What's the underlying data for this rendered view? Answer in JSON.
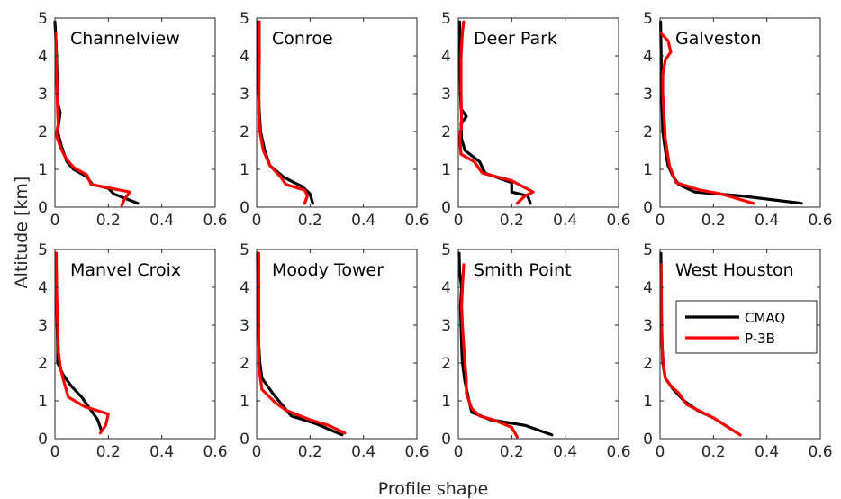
{
  "chart_data": {
    "type": "line",
    "xlabel": "Profile shape",
    "ylabel": "Altitude [km]",
    "xlim": [
      0,
      0.6
    ],
    "ylim": [
      0,
      5
    ],
    "xticks": [
      0,
      0.2,
      0.4,
      0.6
    ],
    "yticks": [
      0,
      1,
      2,
      3,
      4,
      5
    ],
    "xtick_labels": [
      "0",
      "0.2",
      "0.4",
      "0.6"
    ],
    "ytick_labels": [
      "0",
      "1",
      "2",
      "3",
      "4",
      "5"
    ],
    "grid": false,
    "legend": {
      "placement": "right",
      "entries": [
        {
          "name": "CMAQ",
          "color": "#000000"
        },
        {
          "name": "P-3B",
          "color": "#ff0000"
        }
      ]
    },
    "colors": {
      "CMAQ": "#000000",
      "P-3B": "#ff0000"
    },
    "panels": [
      {
        "title": "Channelview",
        "series": [
          {
            "name": "CMAQ",
            "points": [
              [
                0.0,
                4.9
              ],
              [
                0.003,
                4.5
              ],
              [
                0.006,
                4.0
              ],
              [
                0.008,
                3.5
              ],
              [
                0.01,
                3.0
              ],
              [
                0.012,
                2.7
              ],
              [
                0.02,
                2.5
              ],
              [
                0.016,
                2.3
              ],
              [
                0.01,
                2.0
              ],
              [
                0.025,
                1.6
              ],
              [
                0.045,
                1.2
              ],
              [
                0.07,
                1.0
              ],
              [
                0.12,
                0.8
              ],
              [
                0.14,
                0.6
              ],
              [
                0.2,
                0.5
              ],
              [
                0.22,
                0.35
              ],
              [
                0.31,
                0.1
              ]
            ]
          },
          {
            "name": "P-3B",
            "points": [
              [
                0.003,
                4.6
              ],
              [
                0.005,
                4.0
              ],
              [
                0.006,
                3.5
              ],
              [
                0.008,
                3.0
              ],
              [
                0.01,
                2.5
              ],
              [
                0.012,
                2.2
              ],
              [
                0.005,
                1.9
              ],
              [
                0.02,
                1.6
              ],
              [
                0.04,
                1.3
              ],
              [
                0.07,
                1.05
              ],
              [
                0.12,
                0.85
              ],
              [
                0.135,
                0.6
              ],
              [
                0.21,
                0.5
              ],
              [
                0.28,
                0.4
              ],
              [
                0.26,
                0.2
              ],
              [
                0.25,
                0.05
              ]
            ]
          }
        ]
      },
      {
        "title": "Conroe",
        "series": [
          {
            "name": "CMAQ",
            "points": [
              [
                0.005,
                4.9
              ],
              [
                0.006,
                4.0
              ],
              [
                0.006,
                3.3
              ],
              [
                0.01,
                2.5
              ],
              [
                0.015,
                2.0
              ],
              [
                0.03,
                1.5
              ],
              [
                0.05,
                1.1
              ],
              [
                0.1,
                0.8
              ],
              [
                0.14,
                0.65
              ],
              [
                0.17,
                0.55
              ],
              [
                0.2,
                0.35
              ],
              [
                0.21,
                0.1
              ]
            ]
          },
          {
            "name": "P-3B",
            "points": [
              [
                0.01,
                4.9
              ],
              [
                0.01,
                4.0
              ],
              [
                0.009,
                3.2
              ],
              [
                0.008,
                2.5
              ],
              [
                0.012,
                2.0
              ],
              [
                0.025,
                1.5
              ],
              [
                0.05,
                1.1
              ],
              [
                0.09,
                0.8
              ],
              [
                0.11,
                0.6
              ],
              [
                0.18,
                0.45
              ],
              [
                0.19,
                0.3
              ],
              [
                0.18,
                0.1
              ]
            ]
          }
        ]
      },
      {
        "title": "Deer Park",
        "series": [
          {
            "name": "CMAQ",
            "points": [
              [
                0.005,
                4.9
              ],
              [
                0.006,
                4.0
              ],
              [
                0.008,
                3.0
              ],
              [
                0.01,
                2.6
              ],
              [
                0.03,
                2.4
              ],
              [
                0.01,
                2.2
              ],
              [
                0.012,
                1.8
              ],
              [
                0.025,
                1.5
              ],
              [
                0.08,
                1.2
              ],
              [
                0.1,
                0.9
              ],
              [
                0.2,
                0.65
              ],
              [
                0.2,
                0.4
              ],
              [
                0.26,
                0.3
              ],
              [
                0.27,
                0.1
              ]
            ]
          },
          {
            "name": "P-3B",
            "points": [
              [
                0.02,
                4.9
              ],
              [
                0.015,
                4.6
              ],
              [
                0.01,
                4.0
              ],
              [
                0.01,
                3.0
              ],
              [
                0.012,
                2.2
              ],
              [
                0.005,
                1.8
              ],
              [
                0.01,
                1.4
              ],
              [
                0.06,
                1.2
              ],
              [
                0.09,
                0.9
              ],
              [
                0.2,
                0.7
              ],
              [
                0.28,
                0.4
              ],
              [
                0.25,
                0.3
              ],
              [
                0.22,
                0.1
              ]
            ]
          }
        ]
      },
      {
        "title": "Galveston",
        "series": [
          {
            "name": "CMAQ",
            "points": [
              [
                0.002,
                4.9
              ],
              [
                0.004,
                4.0
              ],
              [
                0.006,
                3.0
              ],
              [
                0.008,
                2.5
              ],
              [
                0.01,
                2.0
              ],
              [
                0.02,
                1.5
              ],
              [
                0.03,
                1.1
              ],
              [
                0.05,
                0.8
              ],
              [
                0.07,
                0.6
              ],
              [
                0.13,
                0.4
              ],
              [
                0.3,
                0.3
              ],
              [
                0.53,
                0.1
              ]
            ]
          },
          {
            "name": "P-3B",
            "points": [
              [
                0.003,
                4.6
              ],
              [
                0.03,
                4.4
              ],
              [
                0.04,
                4.1
              ],
              [
                0.02,
                3.9
              ],
              [
                0.01,
                3.5
              ],
              [
                0.01,
                3.0
              ],
              [
                0.015,
                2.4
              ],
              [
                0.02,
                1.8
              ],
              [
                0.035,
                1.1
              ],
              [
                0.06,
                0.65
              ],
              [
                0.15,
                0.45
              ],
              [
                0.23,
                0.35
              ],
              [
                0.35,
                0.1
              ]
            ]
          }
        ]
      },
      {
        "title": "Manvel Croix",
        "series": [
          {
            "name": "CMAQ",
            "points": [
              [
                0.004,
                4.9
              ],
              [
                0.006,
                4.0
              ],
              [
                0.008,
                3.0
              ],
              [
                0.01,
                2.5
              ],
              [
                0.01,
                2.0
              ],
              [
                0.03,
                1.7
              ],
              [
                0.06,
                1.4
              ],
              [
                0.1,
                1.1
              ],
              [
                0.13,
                0.8
              ],
              [
                0.16,
                0.5
              ],
              [
                0.175,
                0.2
              ]
            ]
          },
          {
            "name": "P-3B",
            "points": [
              [
                0.005,
                4.9
              ],
              [
                0.006,
                4.0
              ],
              [
                0.01,
                3.0
              ],
              [
                0.013,
                2.3
              ],
              [
                0.02,
                1.9
              ],
              [
                0.03,
                1.6
              ],
              [
                0.05,
                1.1
              ],
              [
                0.11,
                0.85
              ],
              [
                0.2,
                0.65
              ],
              [
                0.19,
                0.35
              ],
              [
                0.17,
                0.15
              ]
            ]
          }
        ]
      },
      {
        "title": "Moody Tower",
        "series": [
          {
            "name": "CMAQ",
            "points": [
              [
                0.003,
                4.9
              ],
              [
                0.004,
                4.0
              ],
              [
                0.006,
                3.0
              ],
              [
                0.008,
                2.5
              ],
              [
                0.012,
                2.0
              ],
              [
                0.02,
                1.6
              ],
              [
                0.06,
                1.2
              ],
              [
                0.1,
                0.85
              ],
              [
                0.13,
                0.6
              ],
              [
                0.22,
                0.4
              ],
              [
                0.32,
                0.1
              ]
            ]
          },
          {
            "name": "P-3B",
            "points": [
              [
                0.008,
                4.9
              ],
              [
                0.008,
                4.0
              ],
              [
                0.008,
                3.0
              ],
              [
                0.008,
                2.3
              ],
              [
                0.008,
                1.9
              ],
              [
                0.02,
                1.3
              ],
              [
                0.07,
                0.95
              ],
              [
                0.11,
                0.75
              ],
              [
                0.2,
                0.5
              ],
              [
                0.27,
                0.35
              ],
              [
                0.33,
                0.15
              ]
            ]
          }
        ]
      },
      {
        "title": "Smith Point",
        "series": [
          {
            "name": "CMAQ",
            "points": [
              [
                0.003,
                4.9
              ],
              [
                0.005,
                4.4
              ],
              [
                0.012,
                4.0
              ],
              [
                0.008,
                3.5
              ],
              [
                0.01,
                3.0
              ],
              [
                0.012,
                2.5
              ],
              [
                0.015,
                2.0
              ],
              [
                0.025,
                1.5
              ],
              [
                0.04,
                1.0
              ],
              [
                0.05,
                0.7
              ],
              [
                0.12,
                0.5
              ],
              [
                0.25,
                0.35
              ],
              [
                0.35,
                0.1
              ]
            ]
          },
          {
            "name": "P-3B",
            "points": [
              [
                0.02,
                4.6
              ],
              [
                0.018,
                4.3
              ],
              [
                0.015,
                4.0
              ],
              [
                0.012,
                3.5
              ],
              [
                0.015,
                3.0
              ],
              [
                0.02,
                2.5
              ],
              [
                0.025,
                2.0
              ],
              [
                0.03,
                1.6
              ],
              [
                0.03,
                1.2
              ],
              [
                0.05,
                0.8
              ],
              [
                0.08,
                0.6
              ],
              [
                0.13,
                0.5
              ],
              [
                0.2,
                0.3
              ],
              [
                0.22,
                0.05
              ]
            ]
          }
        ]
      },
      {
        "title": "West Houston",
        "series": [
          {
            "name": "CMAQ",
            "points": [
              [
                0.003,
                4.9
              ],
              [
                0.004,
                4.0
              ],
              [
                0.005,
                3.0
              ],
              [
                0.008,
                2.4
              ],
              [
                0.01,
                2.0
              ],
              [
                0.02,
                1.6
              ],
              [
                0.05,
                1.3
              ],
              [
                0.09,
                1.0
              ],
              [
                0.14,
                0.75
              ],
              [
                0.2,
                0.55
              ],
              [
                0.3,
                0.1
              ]
            ]
          },
          {
            "name": "P-3B",
            "points": [
              [
                0.004,
                4.6
              ],
              [
                0.005,
                4.0
              ],
              [
                0.006,
                3.0
              ],
              [
                0.008,
                2.4
              ],
              [
                0.012,
                2.0
              ],
              [
                0.02,
                1.6
              ],
              [
                0.04,
                1.4
              ],
              [
                0.07,
                1.2
              ],
              [
                0.1,
                0.9
              ],
              [
                0.2,
                0.55
              ],
              [
                0.3,
                0.1
              ]
            ]
          }
        ]
      }
    ]
  }
}
